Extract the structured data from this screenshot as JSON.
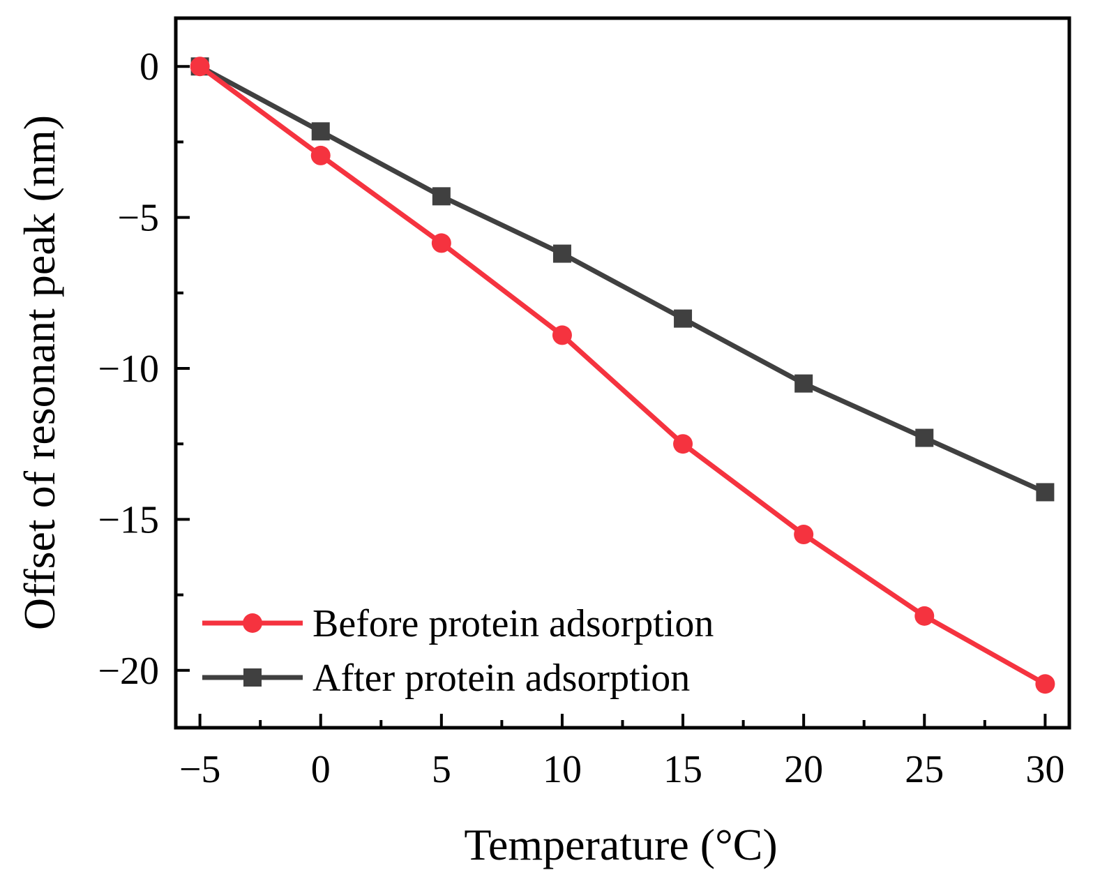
{
  "chart_data": {
    "type": "line",
    "title": "",
    "xlabel": "Temperature (°C)",
    "ylabel": "Offset of resonant peak (nm)",
    "xlim": [
      -6,
      31
    ],
    "ylim": [
      -21.9,
      1.6
    ],
    "xticks": [
      -5,
      0,
      5,
      10,
      15,
      20,
      25,
      30
    ],
    "xtick_labels": [
      "−5",
      "0",
      "5",
      "10",
      "15",
      "20",
      "25",
      "30"
    ],
    "yticks": [
      0,
      -5,
      -10,
      -15,
      -20
    ],
    "ytick_labels": [
      "0",
      "−5",
      "−10",
      "−15",
      "−20"
    ],
    "x": [
      -5,
      0,
      5,
      10,
      15,
      20,
      25,
      30
    ],
    "series": [
      {
        "name": "Before protein adsorption",
        "marker": "circle",
        "color": "#f5333f",
        "values": [
          0,
          -2.95,
          -5.85,
          -8.9,
          -12.5,
          -15.5,
          -18.2,
          -20.45
        ]
      },
      {
        "name": "After protein adsorption",
        "marker": "square",
        "color": "#404040",
        "values": [
          0,
          -2.15,
          -4.3,
          -6.2,
          -8.35,
          -10.5,
          -12.3,
          -14.1
        ]
      }
    ],
    "legend": {
      "position": "bottom-left"
    },
    "grid": false
  }
}
